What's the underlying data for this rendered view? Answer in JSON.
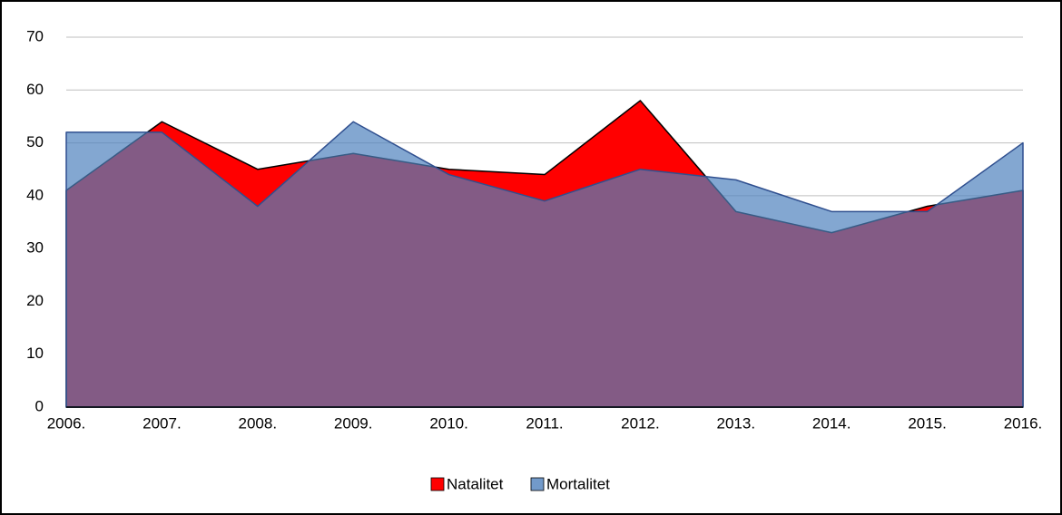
{
  "chart_data": {
    "type": "area",
    "categories": [
      "2006.",
      "2007.",
      "2008.",
      "2009.",
      "2010.",
      "2011.",
      "2012.",
      "2013.",
      "2014.",
      "2015.",
      "2016."
    ],
    "series": [
      {
        "name": "Natalitet",
        "color": "#ff0000",
        "values": [
          41,
          54,
          45,
          48,
          45,
          44,
          58,
          37,
          33,
          38,
          41
        ]
      },
      {
        "name": "Mortalitet",
        "color": "#4f81bd",
        "values": [
          52,
          52,
          38,
          54,
          44,
          39,
          45,
          43,
          37,
          37,
          50
        ]
      }
    ],
    "ylim": [
      0,
      70
    ],
    "yticks": [
      0,
      10,
      20,
      30,
      40,
      50,
      60,
      70
    ],
    "grid": true,
    "legend": "bottom"
  }
}
